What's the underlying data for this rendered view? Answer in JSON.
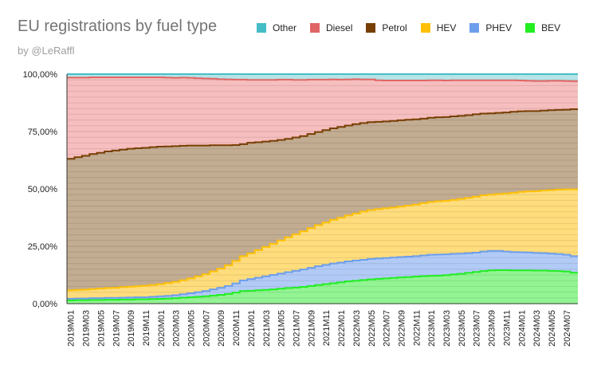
{
  "chart_data": {
    "type": "area",
    "stacked": true,
    "title": "EU registrations by fuel type",
    "subtitle": "by @LeRaffl",
    "xlabel": "",
    "ylabel": "",
    "ylim": [
      0,
      100
    ],
    "yticks": [
      "0,00%",
      "25,00%",
      "50,00%",
      "75,00%",
      "100,00%"
    ],
    "grid": true,
    "legend_position": "top",
    "x": [
      "2019M01",
      "2019M02",
      "2019M03",
      "2019M04",
      "2019M05",
      "2019M06",
      "2019M07",
      "2019M08",
      "2019M09",
      "2019M10",
      "2019M11",
      "2019M12",
      "2020M01",
      "2020M02",
      "2020M03",
      "2020M04",
      "2020M05",
      "2020M06",
      "2020M07",
      "2020M08",
      "2020M09",
      "2020M10",
      "2020M11",
      "2020M12",
      "2021M01",
      "2021M02",
      "2021M03",
      "2021M04",
      "2021M05",
      "2021M06",
      "2021M07",
      "2021M08",
      "2021M09",
      "2021M10",
      "2021M11",
      "2021M12",
      "2022M01",
      "2022M02",
      "2022M03",
      "2022M04",
      "2022M05",
      "2022M06",
      "2022M07",
      "2022M08",
      "2022M09",
      "2022M10",
      "2022M11",
      "2022M12",
      "2023M01",
      "2023M02",
      "2023M03",
      "2023M04",
      "2023M05",
      "2023M06",
      "2023M07",
      "2023M08",
      "2023M09",
      "2023M10",
      "2023M11",
      "2023M12",
      "2024M01",
      "2024M02",
      "2024M03",
      "2024M04",
      "2024M05",
      "2024M06",
      "2024M07",
      "2024M08"
    ],
    "legend_order": [
      "Other",
      "Diesel",
      "Petrol",
      "HEV",
      "PHEV",
      "BEV"
    ],
    "series": [
      {
        "name": "BEV",
        "color": "#22ee22",
        "fill": "#7ff27f",
        "values": [
          1.4,
          1.5,
          1.5,
          1.6,
          1.6,
          1.7,
          1.7,
          1.8,
          1.8,
          1.9,
          1.9,
          2.0,
          2.1,
          2.2,
          2.4,
          2.6,
          2.8,
          3.0,
          3.2,
          3.5,
          3.8,
          4.2,
          4.8,
          5.5,
          5.6,
          5.8,
          6.0,
          6.2,
          6.5,
          6.8,
          7.0,
          7.3,
          7.7,
          8.1,
          8.5,
          8.9,
          9.3,
          9.7,
          10.0,
          10.3,
          10.6,
          10.8,
          11.0,
          11.2,
          11.4,
          11.6,
          11.8,
          12.0,
          12.1,
          12.2,
          12.4,
          12.7,
          13.0,
          13.4,
          13.8,
          14.2,
          14.5,
          14.6,
          14.6,
          14.5,
          14.5,
          14.5,
          14.4,
          14.4,
          14.3,
          14.2,
          14.0,
          13.5
        ]
      },
      {
        "name": "PHEV",
        "color": "#6d9eeb",
        "fill": "#a4c2f4",
        "values": [
          0.7,
          0.7,
          0.7,
          0.8,
          0.8,
          0.8,
          0.8,
          0.8,
          0.9,
          0.9,
          0.9,
          1.0,
          1.1,
          1.2,
          1.3,
          1.5,
          1.7,
          2.0,
          2.3,
          2.7,
          3.1,
          3.5,
          4.0,
          4.6,
          5.1,
          5.5,
          5.9,
          6.3,
          6.6,
          6.9,
          7.3,
          7.6,
          7.9,
          8.2,
          8.4,
          8.6,
          8.6,
          8.7,
          8.8,
          8.8,
          8.9,
          8.9,
          8.9,
          8.9,
          8.9,
          8.9,
          8.9,
          9.0,
          9.2,
          9.2,
          9.1,
          9.0,
          8.8,
          8.6,
          8.4,
          8.5,
          8.5,
          8.4,
          8.1,
          8.0,
          7.9,
          7.8,
          7.7,
          7.6,
          7.5,
          7.4,
          7.3,
          7.2
        ]
      },
      {
        "name": "HEV",
        "color": "#ffc107",
        "fill": "#ffd766",
        "values": [
          3.7,
          3.8,
          3.9,
          4.0,
          4.2,
          4.3,
          4.4,
          4.6,
          4.7,
          4.8,
          5.0,
          5.1,
          5.3,
          5.6,
          5.8,
          6.1,
          6.5,
          6.9,
          7.3,
          7.8,
          8.4,
          9.0,
          9.8,
          10.6,
          11.2,
          12.0,
          12.8,
          13.6,
          14.4,
          15.2,
          15.9,
          16.6,
          17.3,
          17.9,
          18.5,
          19.0,
          19.5,
          20.0,
          20.5,
          21.0,
          21.3,
          21.5,
          21.7,
          21.8,
          22.0,
          22.2,
          22.5,
          22.8,
          23.0,
          23.2,
          23.3,
          23.5,
          23.8,
          24.1,
          24.4,
          24.5,
          24.5,
          24.8,
          25.3,
          25.8,
          26.3,
          26.6,
          26.9,
          27.3,
          27.7,
          28.1,
          28.5,
          29.1
        ]
      },
      {
        "name": "Petrol",
        "color": "#783f04",
        "fill": "#b79e7f",
        "values": [
          57.3,
          57.8,
          58.3,
          58.8,
          59.1,
          59.5,
          59.8,
          59.9,
          60.1,
          60.1,
          60.1,
          60.1,
          59.9,
          59.5,
          59.1,
          58.6,
          57.9,
          57.0,
          56.1,
          55.0,
          53.7,
          52.3,
          50.5,
          48.8,
          48.2,
          47.0,
          45.9,
          44.8,
          43.8,
          42.9,
          42.2,
          41.5,
          41.0,
          40.6,
          40.2,
          39.9,
          39.6,
          39.2,
          38.9,
          38.6,
          38.3,
          38.0,
          37.8,
          37.7,
          37.6,
          37.4,
          37.1,
          36.8,
          36.7,
          36.6,
          36.5,
          36.4,
          36.2,
          36.0,
          35.9,
          35.6,
          35.4,
          35.3,
          35.3,
          35.3,
          35.1,
          35.0,
          34.9,
          34.8,
          34.8,
          34.7,
          34.7,
          34.9
        ]
      },
      {
        "name": "Diesel",
        "color": "#e06666",
        "fill": "#f4b3b3",
        "values": [
          35.4,
          34.7,
          34.1,
          33.4,
          32.9,
          32.3,
          31.9,
          31.5,
          31.1,
          30.9,
          30.7,
          30.4,
          30.2,
          30.0,
          29.8,
          29.7,
          29.5,
          29.3,
          29.2,
          29.0,
          28.8,
          28.7,
          28.5,
          28.1,
          27.4,
          27.2,
          26.9,
          26.6,
          26.3,
          25.8,
          25.1,
          24.5,
          23.7,
          22.8,
          22.0,
          21.3,
          20.6,
          20.1,
          19.6,
          19.0,
          18.6,
          18.1,
          17.8,
          17.6,
          17.3,
          17.1,
          16.9,
          16.6,
          16.3,
          16.1,
          15.9,
          15.7,
          15.5,
          15.2,
          14.8,
          14.5,
          14.4,
          14.2,
          14.0,
          13.7,
          13.4,
          13.2,
          13.1,
          12.9,
          12.8,
          12.7,
          12.5,
          12.2
        ]
      },
      {
        "name": "Other",
        "color": "#46bdc6",
        "fill": "#a9dfe3",
        "values": [
          1.5,
          1.5,
          1.5,
          1.4,
          1.4,
          1.4,
          1.4,
          1.4,
          1.4,
          1.4,
          1.4,
          1.4,
          1.4,
          1.5,
          1.6,
          1.5,
          1.6,
          1.8,
          1.9,
          2.0,
          2.2,
          2.3,
          2.4,
          2.4,
          2.5,
          2.5,
          2.5,
          2.5,
          2.4,
          2.4,
          2.5,
          2.5,
          2.4,
          2.4,
          2.4,
          2.3,
          2.4,
          2.3,
          2.2,
          2.3,
          2.3,
          2.7,
          2.8,
          2.8,
          2.8,
          2.8,
          2.8,
          2.8,
          2.7,
          2.7,
          2.8,
          2.7,
          2.7,
          2.7,
          2.7,
          2.7,
          2.7,
          2.7,
          2.7,
          2.7,
          2.8,
          2.9,
          3.0,
          3.0,
          2.9,
          2.9,
          3.0,
          3.1
        ]
      }
    ],
    "tick_labels_shown": [
      "2019M01",
      "2019M03",
      "2019M05",
      "2019M07",
      "2019M09",
      "2019M11",
      "2020M01",
      "2020M03",
      "2020M05",
      "2020M07",
      "2020M09",
      "2020M11",
      "2021M01",
      "2021M03",
      "2021M05",
      "2021M07",
      "2021M09",
      "2021M11",
      "2022M01",
      "2022M03",
      "2022M05",
      "2022M07",
      "2022M09",
      "2022M11",
      "2023M01",
      "2023M03",
      "2023M05",
      "2023M07",
      "2023M09",
      "2023M11",
      "2024M01",
      "2024M03",
      "2024M05",
      "2024M07"
    ]
  }
}
